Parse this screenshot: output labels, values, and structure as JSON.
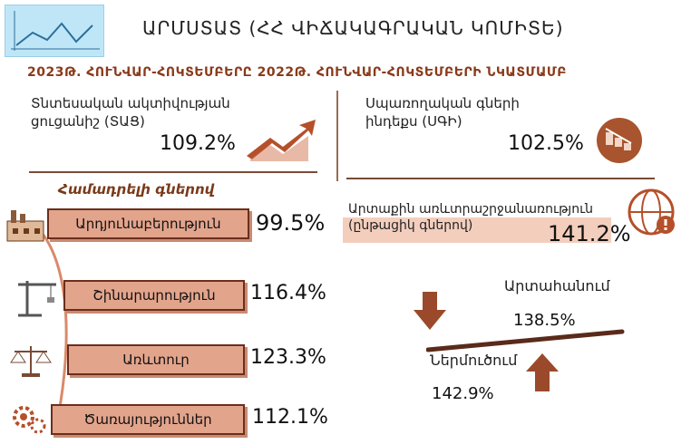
{
  "header": {
    "logo_icon": "chart-line-logo-icon",
    "title": "ԱՐՄՍՏԱՏ (ՀՀ ՎԻՃԱԿԱԳՐԱԿԱՆ ԿՈՄԻՏԵ)",
    "subtitle": "2023Թ. ՀՈՒՆՎԱՐ-ՀՈԿՏԵՄԲԵՐԸ 2022Թ. ՀՈՒՆՎԱՐ-ՀՈԿՏԵՄԲԵՐԻ ՆԿԱՏՄԱՄԲ"
  },
  "economic_activity": {
    "label_line1": "Տնտեսական ակտիվության",
    "label_line2": "ցուցանիշ (ՏԱՑ)",
    "value": "109.2%",
    "icon": "growth-arrow-icon"
  },
  "cpi": {
    "label_line1": "Սպառողական գների",
    "label_line2": "ինդեքս (ՍԳԻ)",
    "value": "102.5%",
    "icon": "price-decline-icon"
  },
  "comparable_prices_label": "Համադրելի գներով",
  "sectors": [
    {
      "label": "Արդյունաբերություն",
      "value": "99.5%",
      "icon": "factory-icon"
    },
    {
      "label": "Շինարարություն",
      "value": "116.4%",
      "icon": "crane-icon"
    },
    {
      "label": "Առևտուր",
      "value": "123.3%",
      "icon": "scales-icon"
    },
    {
      "label": "Ծառայություններ",
      "value": "112.1%",
      "icon": "gears-icon"
    }
  ],
  "foreign_trade": {
    "label_line1": "Արտաքին առևտրաշրջանառություն",
    "label_line2": "(ընթացիկ գներով)",
    "value": "141.2%",
    "icon": "globe-alert-icon"
  },
  "export": {
    "label": "Արտահանում",
    "value": "138.5%"
  },
  "import": {
    "label": "Ներմուծում",
    "value": "142.9%"
  },
  "colors": {
    "accent": "#8a3a1a",
    "bar_fill": "#e3a48c",
    "arrow": "#9a4a2a"
  }
}
